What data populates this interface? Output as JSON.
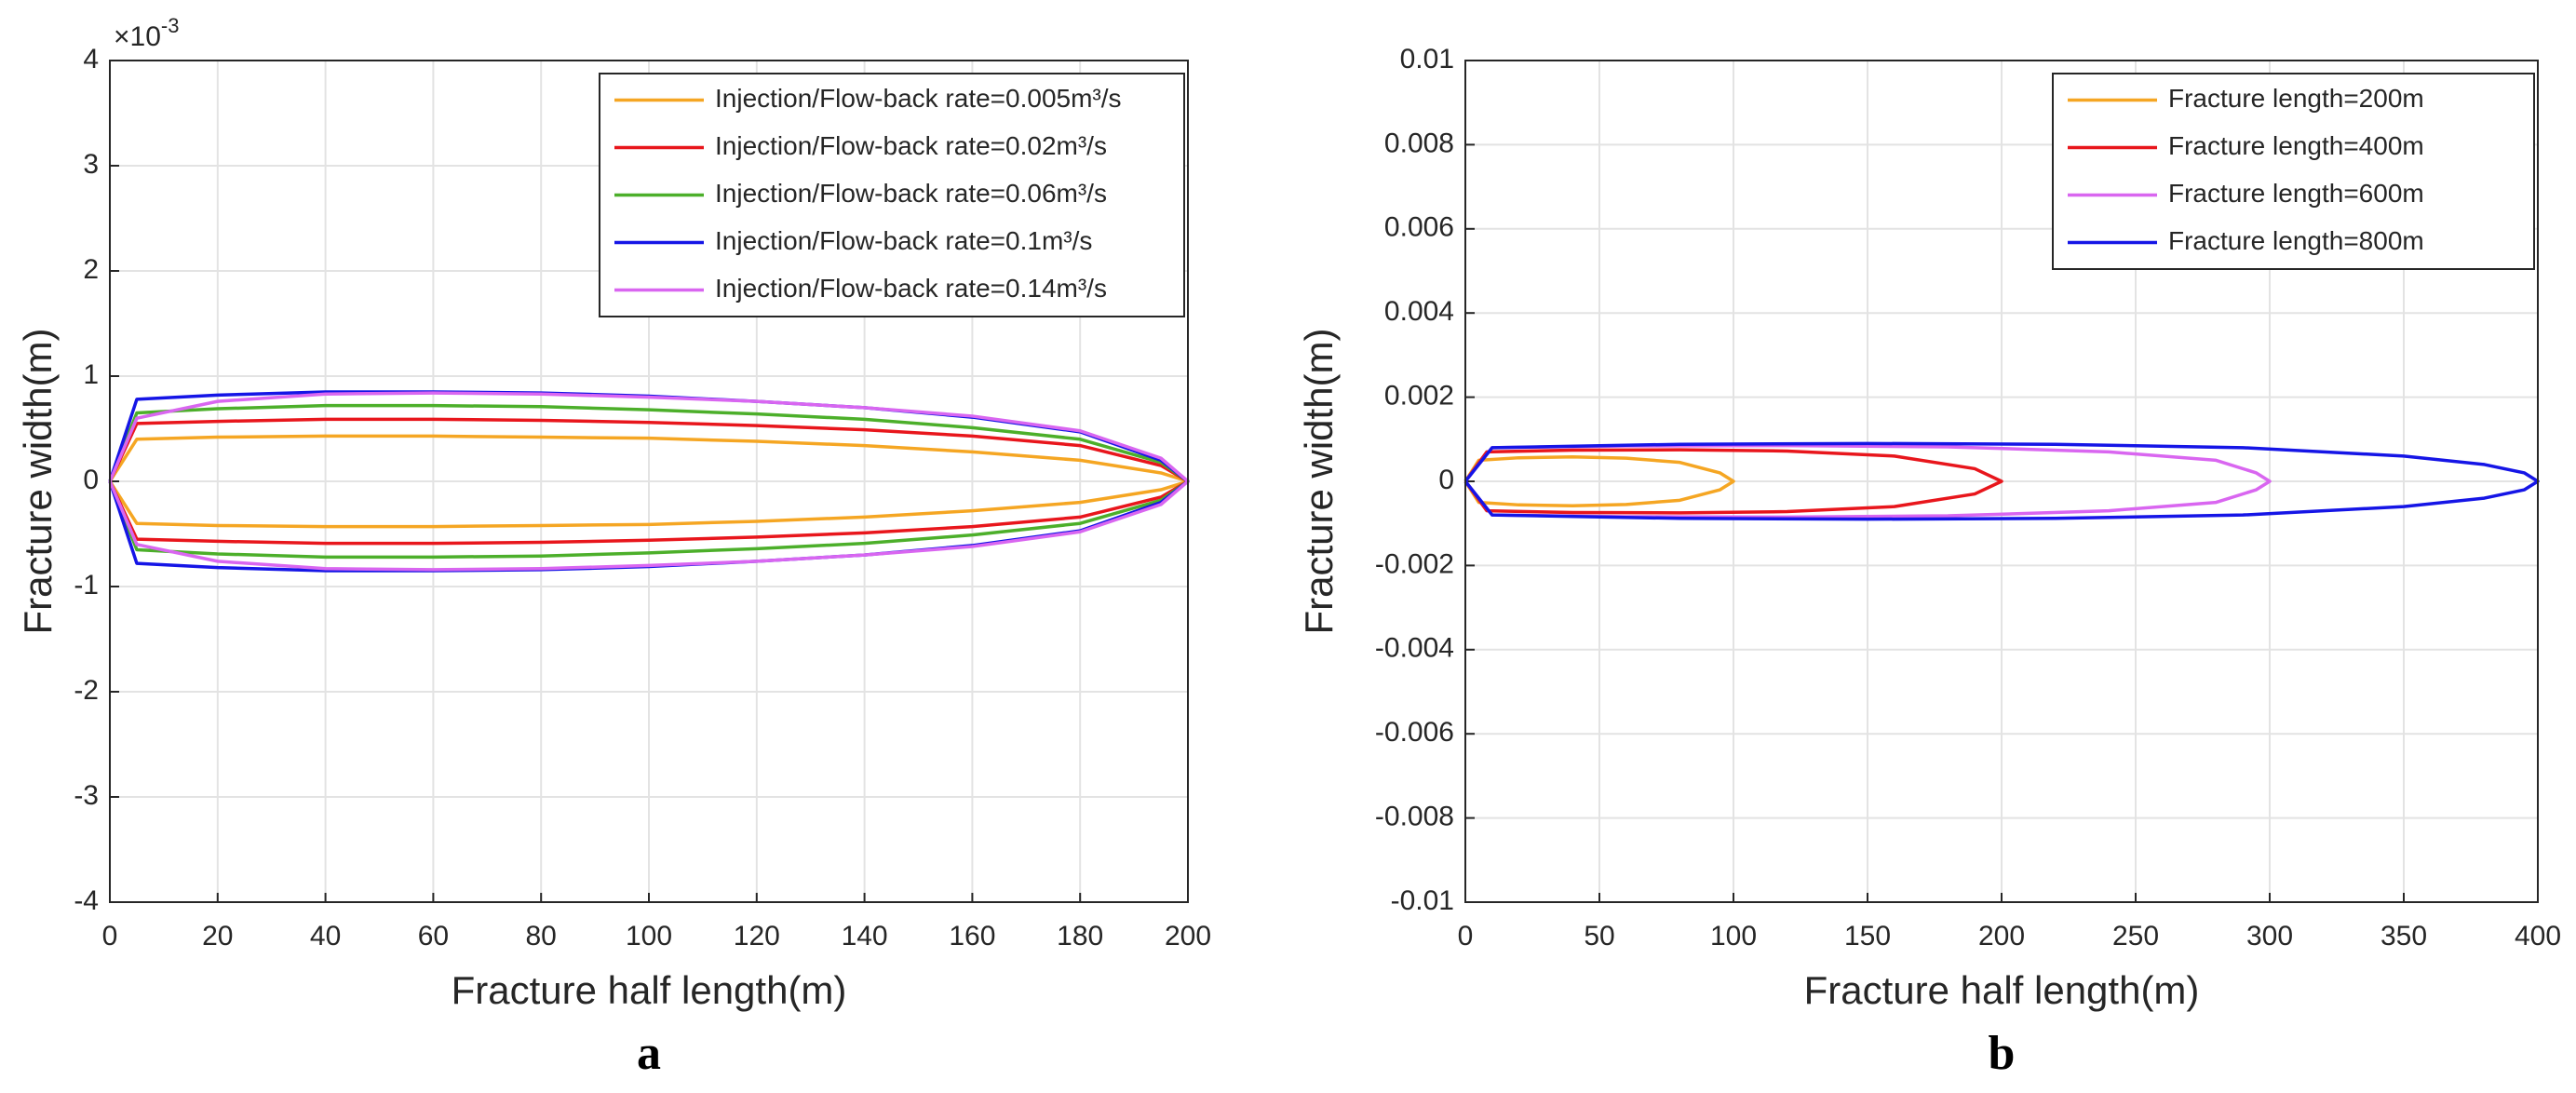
{
  "chart_data": [
    {
      "type": "line",
      "subplot_label": "a",
      "x_label": "Fracture half length(m)",
      "y_label": "Fracture width(m)",
      "y_multiplier": "×10",
      "y_multiplier_exponent": "-3",
      "xlim": [
        0,
        200
      ],
      "ylim": [
        -4,
        4
      ],
      "xticks": [
        0,
        20,
        40,
        60,
        80,
        100,
        120,
        140,
        160,
        180,
        200
      ],
      "yticks": [
        -4,
        -3,
        -2,
        -1,
        0,
        1,
        2,
        3,
        4
      ],
      "grid": true,
      "legend": "upper right",
      "x": [
        0,
        5,
        20,
        40,
        60,
        80,
        100,
        120,
        140,
        160,
        180,
        195,
        200,
        195,
        180,
        160,
        140,
        120,
        100,
        80,
        60,
        40,
        20,
        5,
        0
      ],
      "series": [
        {
          "name": "Injection/Flow-back rate=0.005m³/s",
          "color": "#f5a623",
          "values": [
            0,
            0.4,
            0.42,
            0.43,
            0.43,
            0.42,
            0.41,
            0.38,
            0.34,
            0.28,
            0.2,
            0.08,
            0,
            -0.08,
            -0.2,
            -0.28,
            -0.34,
            -0.38,
            -0.41,
            -0.42,
            -0.43,
            -0.43,
            -0.42,
            -0.4,
            0
          ]
        },
        {
          "name": "Injection/Flow-back rate=0.02m³/s",
          "color": "#e8161c",
          "values": [
            0,
            0.55,
            0.57,
            0.59,
            0.59,
            0.58,
            0.56,
            0.53,
            0.49,
            0.43,
            0.34,
            0.15,
            0,
            -0.15,
            -0.34,
            -0.43,
            -0.49,
            -0.53,
            -0.56,
            -0.58,
            -0.59,
            -0.59,
            -0.57,
            -0.55,
            0
          ]
        },
        {
          "name": "Injection/Flow-back rate=0.06m³/s",
          "color": "#4caf2a",
          "values": [
            0,
            0.65,
            0.69,
            0.72,
            0.72,
            0.71,
            0.68,
            0.64,
            0.59,
            0.51,
            0.4,
            0.18,
            0,
            -0.18,
            -0.4,
            -0.51,
            -0.59,
            -0.64,
            -0.68,
            -0.71,
            -0.72,
            -0.72,
            -0.69,
            -0.65,
            0
          ]
        },
        {
          "name": "Injection/Flow-back rate=0.1m³/s",
          "color": "#1515e6",
          "values": [
            0,
            0.78,
            0.82,
            0.85,
            0.85,
            0.84,
            0.81,
            0.76,
            0.7,
            0.61,
            0.47,
            0.2,
            0,
            -0.2,
            -0.47,
            -0.61,
            -0.7,
            -0.76,
            -0.81,
            -0.84,
            -0.85,
            -0.85,
            -0.82,
            -0.78,
            0
          ]
        },
        {
          "name": "Injection/Flow-back rate=0.14m³/s",
          "color": "#d966f0",
          "values": [
            0,
            0.6,
            0.76,
            0.83,
            0.84,
            0.83,
            0.8,
            0.76,
            0.7,
            0.62,
            0.48,
            0.22,
            0,
            -0.22,
            -0.48,
            -0.62,
            -0.7,
            -0.76,
            -0.8,
            -0.83,
            -0.84,
            -0.83,
            -0.76,
            -0.6,
            0
          ]
        }
      ]
    },
    {
      "type": "line",
      "subplot_label": "b",
      "x_label": "Fracture half length(m)",
      "y_label": "Fracture width(m)",
      "xlim": [
        0,
        400
      ],
      "ylim": [
        -0.01,
        0.01
      ],
      "xticks": [
        0,
        50,
        100,
        150,
        200,
        250,
        300,
        350,
        400
      ],
      "yticks": [
        -0.01,
        -0.008,
        -0.006,
        -0.004,
        -0.002,
        0,
        0.002,
        0.004,
        0.006,
        0.008,
        0.01
      ],
      "grid": true,
      "legend": "upper right",
      "series": [
        {
          "name": "Fracture length=200m",
          "color": "#f5a623",
          "x": [
            0,
            5,
            20,
            40,
            60,
            80,
            95,
            100,
            95,
            80,
            60,
            40,
            20,
            5,
            0
          ],
          "values": [
            0,
            0.0005,
            0.00056,
            0.00058,
            0.00055,
            0.00045,
            0.0002,
            0,
            -0.0002,
            -0.00045,
            -0.00055,
            -0.00058,
            -0.00056,
            -0.0005,
            0
          ]
        },
        {
          "name": "Fracture length=400m",
          "color": "#e8161c",
          "x": [
            0,
            8,
            40,
            80,
            120,
            160,
            190,
            200,
            190,
            160,
            120,
            80,
            40,
            8,
            0
          ],
          "values": [
            0,
            0.0007,
            0.00074,
            0.00075,
            0.00072,
            0.0006,
            0.0003,
            0,
            -0.0003,
            -0.0006,
            -0.00072,
            -0.00075,
            -0.00074,
            -0.0007,
            0
          ]
        },
        {
          "name": "Fracture length=600m",
          "color": "#d966f0",
          "x": [
            0,
            10,
            60,
            120,
            180,
            240,
            280,
            295,
            300,
            295,
            280,
            240,
            180,
            120,
            60,
            10,
            0
          ],
          "values": [
            0,
            0.0008,
            0.00084,
            0.00085,
            0.00082,
            0.0007,
            0.0005,
            0.0002,
            0,
            -0.0002,
            -0.0005,
            -0.0007,
            -0.00082,
            -0.00085,
            -0.00084,
            -0.0008,
            0
          ]
        },
        {
          "name": "Fracture length=800m",
          "color": "#1515e6",
          "x": [
            0,
            10,
            80,
            150,
            220,
            290,
            350,
            380,
            395,
            400,
            395,
            380,
            350,
            290,
            220,
            150,
            80,
            10,
            0
          ],
          "values": [
            0,
            0.0008,
            0.00088,
            0.0009,
            0.00088,
            0.0008,
            0.0006,
            0.0004,
            0.0002,
            0,
            -0.0002,
            -0.0004,
            -0.0006,
            -0.0008,
            -0.00088,
            -0.0009,
            -0.00088,
            -0.0008,
            0
          ]
        }
      ]
    }
  ]
}
